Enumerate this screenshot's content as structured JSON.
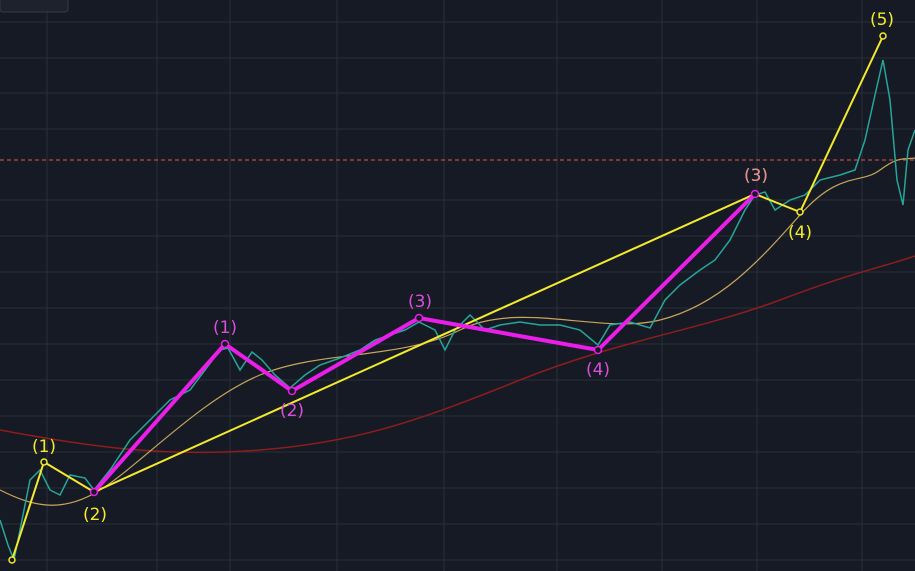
{
  "waves": {
    "primary": {
      "labels": [
        "(1)",
        "(2)",
        "(3)",
        "(4)",
        "(5)"
      ]
    },
    "intermediate": {
      "labels": [
        "(1)",
        "(2)",
        "(3)",
        "(4)",
        "(3)"
      ]
    }
  }
}
